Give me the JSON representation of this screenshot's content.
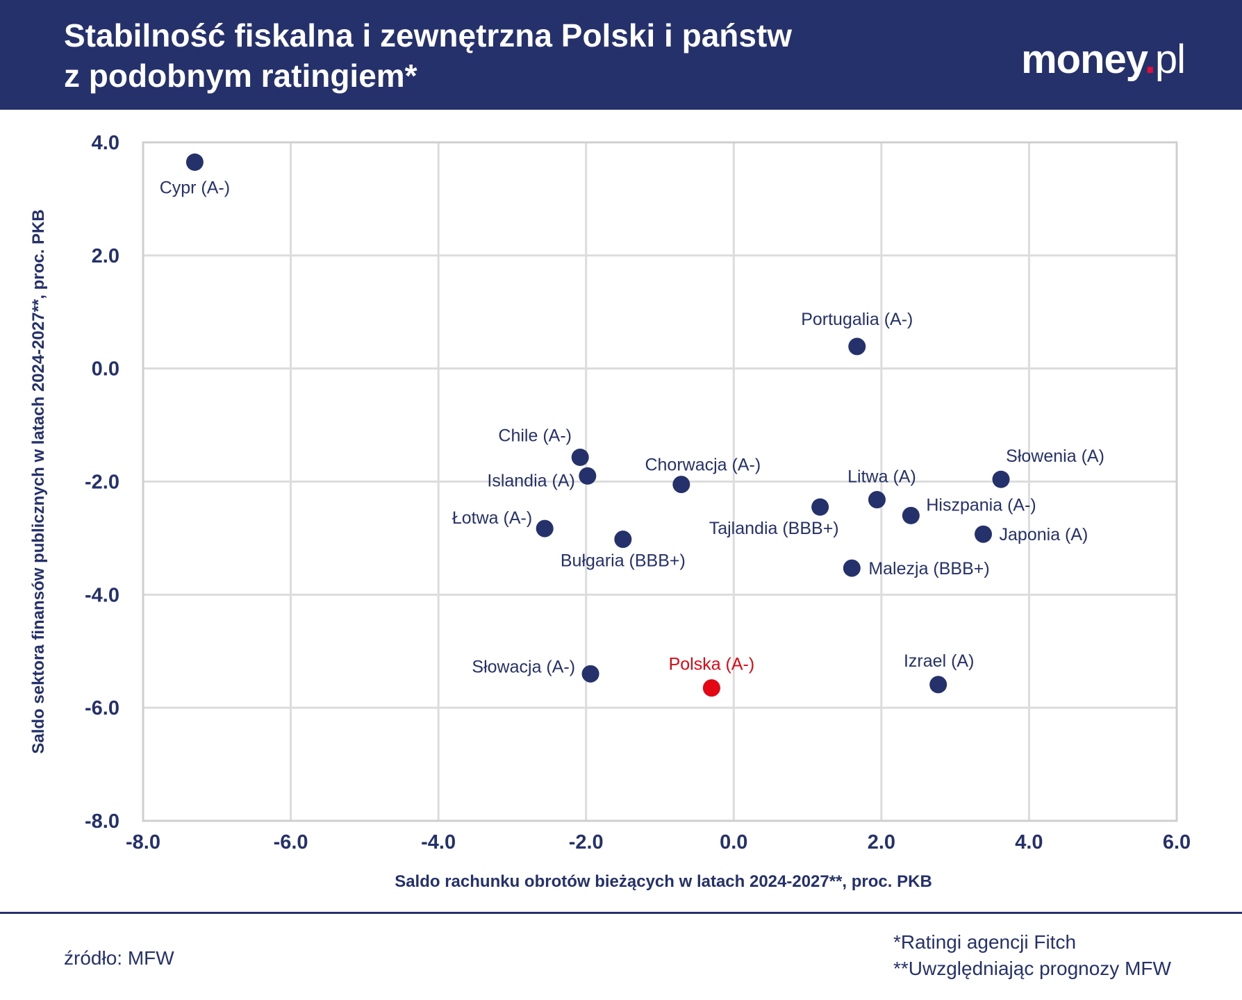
{
  "header": {
    "title_line1": "Stabilność fiskalna i zewnętrzna Polski i państw",
    "title_line2": "z podobnym ratingiem*",
    "logo": "money.pl"
  },
  "chart_data": {
    "type": "scatter",
    "xlabel": "Saldo rachunku obrotów bieżących w latach 2024-2027**, proc. PKB",
    "ylabel": "Saldo sektora finansów publicznych w latach 2024-2027**, proc. PKB",
    "xlim": [
      -8,
      6
    ],
    "ylim": [
      -8,
      4
    ],
    "xticks": [
      "-8.0",
      "-6.0",
      "-4.0",
      "-2.0",
      "0.0",
      "2.0",
      "4.0",
      "6.0"
    ],
    "yticks": [
      "4.0",
      "2.0",
      "0.0",
      "-2.0",
      "-4.0",
      "-6.0",
      "-8.0"
    ],
    "grid": true,
    "colors": {
      "default": "#25316b",
      "highlight": "#e30613"
    },
    "points": [
      {
        "label": "Cypr (A-)",
        "x": -7.3,
        "y": 3.65
      },
      {
        "label": "Portugalia (A-)",
        "x": 1.67,
        "y": 0.39
      },
      {
        "label": "Chile (A-)",
        "x": -2.08,
        "y": -1.57
      },
      {
        "label": "Islandia (A)",
        "x": -1.98,
        "y": -1.9
      },
      {
        "label": "Chorwacja (A-)",
        "x": -0.71,
        "y": -2.05
      },
      {
        "label": "Łotwa (A-)",
        "x": -2.56,
        "y": -2.83
      },
      {
        "label": "Bułgaria (BBB+)",
        "x": -1.5,
        "y": -3.02
      },
      {
        "label": "Tajlandia (BBB+)",
        "x": 1.17,
        "y": -2.45
      },
      {
        "label": "Litwa (A)",
        "x": 1.94,
        "y": -2.32
      },
      {
        "label": "Hiszpania (A-)",
        "x": 2.4,
        "y": -2.6
      },
      {
        "label": "Słowenia (A)",
        "x": 3.62,
        "y": -1.96
      },
      {
        "label": "Japonia (A)",
        "x": 3.38,
        "y": -2.93
      },
      {
        "label": "Malezja (BBB+)",
        "x": 1.6,
        "y": -3.53
      },
      {
        "label": "Słowacja (A-)",
        "x": -1.94,
        "y": -5.4
      },
      {
        "label": "Polska (A-)",
        "x": -0.3,
        "y": -5.65,
        "highlight": true
      },
      {
        "label": "Izrael (A)",
        "x": 2.77,
        "y": -5.59
      }
    ]
  },
  "footer": {
    "source": "źródło: MFW",
    "note1": "*Ratingi agencji Fitch",
    "note2": "**Uwzględniając prognozy MFW"
  }
}
